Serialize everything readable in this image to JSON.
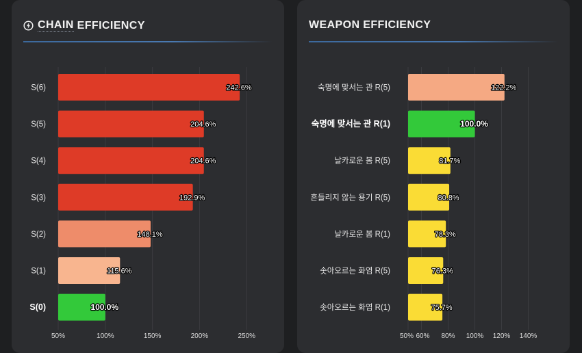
{
  "panels": {
    "chain": {
      "title_prefix": "CHAIN",
      "title_rest": "EFFICIENCY",
      "icon": "lightning-bolt-icon",
      "accent": "#3e6fa8"
    },
    "weapon": {
      "title": "WEAPON EFFICIENCY",
      "accent": "#3e6fa8"
    }
  },
  "chart_data": [
    {
      "type": "bar",
      "orientation": "horizontal",
      "title": "CHAIN EFFICIENCY",
      "categories": [
        "S(6)",
        "S(5)",
        "S(4)",
        "S(3)",
        "S(2)",
        "S(1)",
        "S(0)"
      ],
      "values": [
        242.6,
        204.6,
        204.6,
        192.9,
        148.1,
        115.6,
        100.0
      ],
      "value_labels": [
        "242.6%",
        "204.6%",
        "204.6%",
        "192.9%",
        "148.1%",
        "115.6%",
        "100.0%"
      ],
      "colors": [
        "#de3b27",
        "#de3b27",
        "#de3b27",
        "#de3b27",
        "#ee8c6a",
        "#f8b58f",
        "#33c93a"
      ],
      "highlight_index": 6,
      "xlim": [
        50,
        260
      ],
      "x_ticks": [
        50,
        100,
        150,
        200,
        250
      ],
      "x_tick_labels": [
        "50%",
        "100%",
        "150%",
        "200%",
        "250%"
      ],
      "grid": true
    },
    {
      "type": "bar",
      "orientation": "horizontal",
      "title": "WEAPON EFFICIENCY",
      "categories": [
        "숙명에 맞서는 관 R(5)",
        "숙명에 맞서는 관 R(1)",
        "날카로운 봄 R(5)",
        "흔들리지 않는 용기 R(5)",
        "날카로운 봄 R(1)",
        "솟아오르는 화염 R(5)",
        "솟아오르는 화염 R(1)"
      ],
      "values": [
        122.2,
        100.0,
        81.7,
        80.8,
        78.3,
        76.3,
        75.7
      ],
      "value_labels": [
        "122.2%",
        "100.0%",
        "81.7%",
        "80.8%",
        "78.3%",
        "76.3%",
        "75.7%"
      ],
      "colors": [
        "#f5a983",
        "#33c93a",
        "#fadc35",
        "#fadc35",
        "#fadc35",
        "#fadc35",
        "#fadc35"
      ],
      "highlight_index": 1,
      "xlim": [
        50,
        150
      ],
      "x_ticks": [
        50,
        60,
        80,
        100,
        120,
        140
      ],
      "x_tick_labels": [
        "50%",
        "60%",
        "80%",
        "100%",
        "120%",
        "140%"
      ],
      "grid": true
    }
  ]
}
